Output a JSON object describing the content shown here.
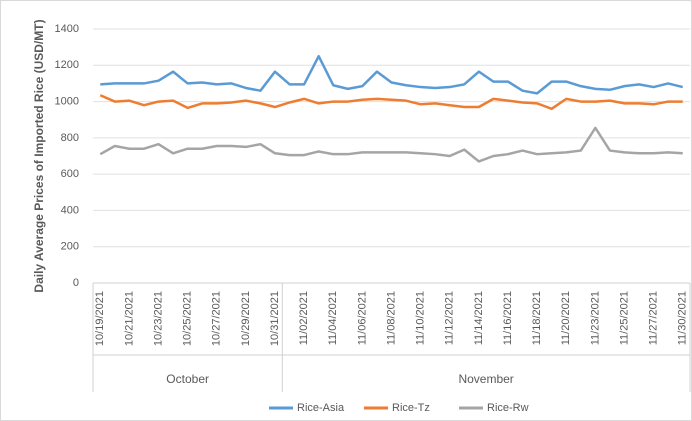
{
  "chart_data": {
    "type": "line",
    "y_label": "Daily Average Prices of Imported Rice (USD/MT)",
    "categories": [
      "10/19/2021",
      null,
      "10/21/2021",
      null,
      "10/23/2021",
      null,
      "10/25/2021",
      null,
      "10/27/2021",
      null,
      "10/29/2021",
      null,
      "10/31/2021",
      null,
      "11/02/2021",
      null,
      "11/04/2021",
      null,
      "11/06/2021",
      null,
      "11/08/2021",
      null,
      "11/10/2021",
      null,
      "11/12/2021",
      null,
      "11/14/2021",
      null,
      "11/16/2021",
      null,
      "11/18/2021",
      null,
      "11/20/2021",
      null,
      "11/23/2021",
      null,
      "11/25/2021",
      null,
      "11/27/2021",
      null,
      "11/30/2021"
    ],
    "groups": [
      {
        "name": "October",
        "span": 13
      },
      {
        "name": "November",
        "span": 28
      }
    ],
    "series": [
      {
        "name": "Rice-Asia",
        "color": "#5b9bd5",
        "values": [
          1095,
          1100,
          1100,
          1100,
          1115,
          1165,
          1100,
          1105,
          1095,
          1100,
          1075,
          1060,
          1165,
          1095,
          1095,
          1250,
          1090,
          1070,
          1085,
          1165,
          1105,
          1090,
          1080,
          1075,
          1080,
          1095,
          1165,
          1110,
          1110,
          1060,
          1045,
          1110,
          1110,
          1085,
          1070,
          1065,
          1085,
          1095,
          1080,
          1100,
          1080
        ]
      },
      {
        "name": "Rice-Tz",
        "color": "#ed7d31",
        "values": [
          1035,
          1000,
          1005,
          980,
          1000,
          1005,
          965,
          990,
          990,
          995,
          1005,
          990,
          970,
          995,
          1015,
          990,
          1000,
          1000,
          1010,
          1015,
          1010,
          1005,
          985,
          990,
          980,
          970,
          970,
          1015,
          1005,
          995,
          990,
          960,
          1015,
          1000,
          1000,
          1005,
          990,
          990,
          985,
          1000,
          1000
        ]
      },
      {
        "name": "Rice-Rw",
        "color": "#a5a5a5",
        "values": [
          710,
          755,
          740,
          740,
          765,
          715,
          740,
          740,
          755,
          755,
          750,
          765,
          715,
          705,
          705,
          725,
          710,
          710,
          720,
          720,
          720,
          720,
          715,
          710,
          700,
          735,
          670,
          700,
          710,
          730,
          710,
          715,
          720,
          730,
          855,
          730,
          720,
          715,
          715,
          720,
          715
        ]
      }
    ],
    "ylim": [
      0,
      1400
    ],
    "yticks": [
      0,
      200,
      400,
      600,
      800,
      1000,
      1200,
      1400
    ],
    "grid": true,
    "legend": "bottom"
  }
}
